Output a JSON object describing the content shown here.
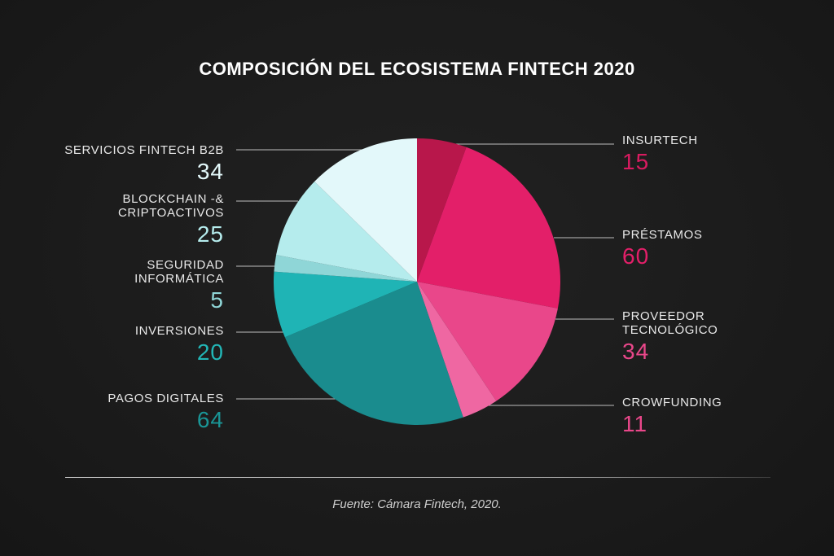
{
  "title": "COMPOSICIÓN DEL ECOSISTEMA FINTECH 2020",
  "source": "Fuente: Cámara Fintech, 2020.",
  "chart_data": {
    "type": "pie",
    "title": "COMPOSICIÓN DEL ECOSISTEMA FINTECH 2020",
    "slices": [
      {
        "label": "INSURTECH",
        "value": 15,
        "color": "#b8174b",
        "value_color": "#d81b60"
      },
      {
        "label": "PRÉSTAMOS",
        "value": 60,
        "color": "#e31f69",
        "value_color": "#e31f69"
      },
      {
        "label": "PROVEEDOR TECNOLÓGICO",
        "label_lines": [
          "PROVEEDOR",
          "TECNOLÓGICO"
        ],
        "value": 34,
        "color": "#e9478a",
        "value_color": "#e9478a"
      },
      {
        "label": "CROWFUNDING",
        "value": 11,
        "color": "#ef67a2",
        "value_color": "#e9478a"
      },
      {
        "label": "PAGOS DIGITALES",
        "value": 64,
        "color": "#1a8c8e",
        "value_color": "#1a9596"
      },
      {
        "label": "INVERSIONES",
        "value": 20,
        "color": "#1fb4b5",
        "value_color": "#22b6b6"
      },
      {
        "label": "SEGURIDAD INFORMÁTICA",
        "label_lines": [
          "SEGURIDAD",
          "INFORMÁTICA"
        ],
        "value": 5,
        "color": "#8fd6d7",
        "value_color": "#8fd6d7"
      },
      {
        "label": "BLOCKCHAIN & CRIPTOACTIVOS",
        "label_lines": [
          "BLOCKCHAIN -&",
          "CRIPTOACTIVOS"
        ],
        "value": 25,
        "color": "#b5eced",
        "value_color": "#b5eced"
      },
      {
        "label": "SERVICIOS FINTECH B2B",
        "value": 34,
        "color": "#e3f8fa",
        "value_color": "#e3f8fa"
      }
    ],
    "start": "top",
    "direction": "clockwise",
    "legend": "callouts"
  }
}
